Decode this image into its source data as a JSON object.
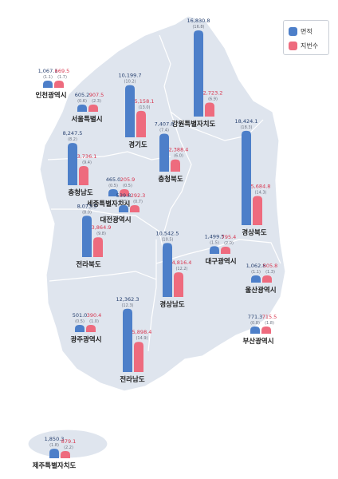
{
  "colors": {
    "area": "#4d7fc9",
    "lots": "#ee6b7e",
    "map_fill": "#dfe5ee",
    "map_line": "#ffffff",
    "value_text": "#27406f",
    "lots_text": "#d8354e",
    "pct_text": "#6b7280",
    "region_text": "#222222"
  },
  "chart_data": {
    "type": "bar",
    "legend": [
      "면적",
      "지번수"
    ],
    "legend_position": "top-right",
    "regions": [
      {
        "name": "인천광역시",
        "area": 1067.1,
        "area_pct": 1.1,
        "lots": 669.5,
        "lots_pct": 1.7,
        "area_label": "1,067.1",
        "area_pct_label": "(1.1)",
        "lots_label": "669.5",
        "lots_pct_label": "(1.7)"
      },
      {
        "name": "서울특별시",
        "area": 605.2,
        "area_pct": 0.6,
        "lots": 907.5,
        "lots_pct": 2.3,
        "area_label": "605.2",
        "area_pct_label": "(0.6)",
        "lots_label": "907.5",
        "lots_pct_label": "(2.3)"
      },
      {
        "name": "경기도",
        "area": 10199.7,
        "area_pct": 10.2,
        "lots": 5158.1,
        "lots_pct": 13.0,
        "area_label": "10,199.7",
        "area_pct_label": "(10.2)",
        "lots_label": "5,158.1",
        "lots_pct_label": "(13.0)"
      },
      {
        "name": "강원특별자치도",
        "area": 16830.8,
        "area_pct": 16.8,
        "lots": 2723.2,
        "lots_pct": 6.9,
        "area_label": "16,830.8",
        "area_pct_label": "(16.8)",
        "lots_label": "2,723.2",
        "lots_pct_label": "(6.9)"
      },
      {
        "name": "충청북도",
        "area": 7407.0,
        "area_pct": 7.4,
        "lots": 2388.4,
        "lots_pct": 6.0,
        "area_label": "7,407.0",
        "area_pct_label": "(7.4)",
        "lots_label": "2,388.4",
        "lots_pct_label": "(6.0)"
      },
      {
        "name": "충청남도",
        "area": 8247.5,
        "area_pct": 8.2,
        "lots": 3736.1,
        "lots_pct": 9.4,
        "area_label": "8,247.5",
        "area_pct_label": "(8.2)",
        "lots_label": "3,736.1",
        "lots_pct_label": "(9.4)"
      },
      {
        "name": "세종특별자치시",
        "area": 465.0,
        "area_pct": 0.5,
        "lots": 205.9,
        "lots_pct": 0.5,
        "area_label": "465.0",
        "area_pct_label": "(0.5)",
        "lots_label": "205.9",
        "lots_pct_label": "(0.5)"
      },
      {
        "name": "대전광역시",
        "area": 539.8,
        "area_pct": 0.5,
        "lots": 292.3,
        "lots_pct": 0.7,
        "area_label": "539.8",
        "area_pct_label": "(0.5)",
        "lots_label": "292.3",
        "lots_pct_label": "(0.7)"
      },
      {
        "name": "경상북도",
        "area": 18424.1,
        "area_pct": 18.3,
        "lots": 5684.8,
        "lots_pct": 14.3,
        "area_label": "18,424.1",
        "area_pct_label": "(18.3)",
        "lots_label": "5,684.8",
        "lots_pct_label": "(14.3)"
      },
      {
        "name": "전라북도",
        "area": 8073.3,
        "area_pct": 8.0,
        "lots": 3864.9,
        "lots_pct": 9.8,
        "area_label": "8,073.3",
        "area_pct_label": "(8.0)",
        "lots_label": "3,864.9",
        "lots_pct_label": "(9.8)"
      },
      {
        "name": "대구광역시",
        "area": 1499.5,
        "area_pct": 1.5,
        "lots": 795.4,
        "lots_pct": 2.0,
        "area_label": "1,499.5",
        "area_pct_label": "(1.5)",
        "lots_label": "795.4",
        "lots_pct_label": "(2.0)"
      },
      {
        "name": "경상남도",
        "area": 10542.5,
        "area_pct": 10.5,
        "lots": 4816.4,
        "lots_pct": 12.2,
        "area_label": "10,542.5",
        "area_pct_label": "(10.5)",
        "lots_label": "4,816.4",
        "lots_pct_label": "(12.2)"
      },
      {
        "name": "울산광역시",
        "area": 1062.8,
        "area_pct": 1.1,
        "lots": 505.8,
        "lots_pct": 1.3,
        "area_label": "1,062.8",
        "area_pct_label": "(1.1)",
        "lots_label": "505.8",
        "lots_pct_label": "(1.3)"
      },
      {
        "name": "광주광역시",
        "area": 501.0,
        "area_pct": 0.5,
        "lots": 390.4,
        "lots_pct": 1.0,
        "area_label": "501.0",
        "area_pct_label": "(0.5)",
        "lots_label": "390.4",
        "lots_pct_label": "(1.0)"
      },
      {
        "name": "전라남도",
        "area": 12362.3,
        "area_pct": 12.3,
        "lots": 5898.4,
        "lots_pct": 14.9,
        "area_label": "12,362.3",
        "area_pct_label": "(12.3)",
        "lots_label": "5,898.4",
        "lots_pct_label": "(14.9)"
      },
      {
        "name": "부산광역시",
        "area": 771.3,
        "area_pct": 0.8,
        "lots": 715.5,
        "lots_pct": 1.8,
        "area_label": "771.3",
        "area_pct_label": "(0.8)",
        "lots_label": "715.5",
        "lots_pct_label": "(1.8)"
      },
      {
        "name": "제주특별자치도",
        "area": 1850.3,
        "area_pct": 1.8,
        "lots": 879.1,
        "lots_pct": 2.2,
        "area_label": "1,850.3",
        "area_pct_label": "(1.8)",
        "lots_label": "879.1",
        "lots_pct_label": "(2.2)"
      }
    ]
  }
}
